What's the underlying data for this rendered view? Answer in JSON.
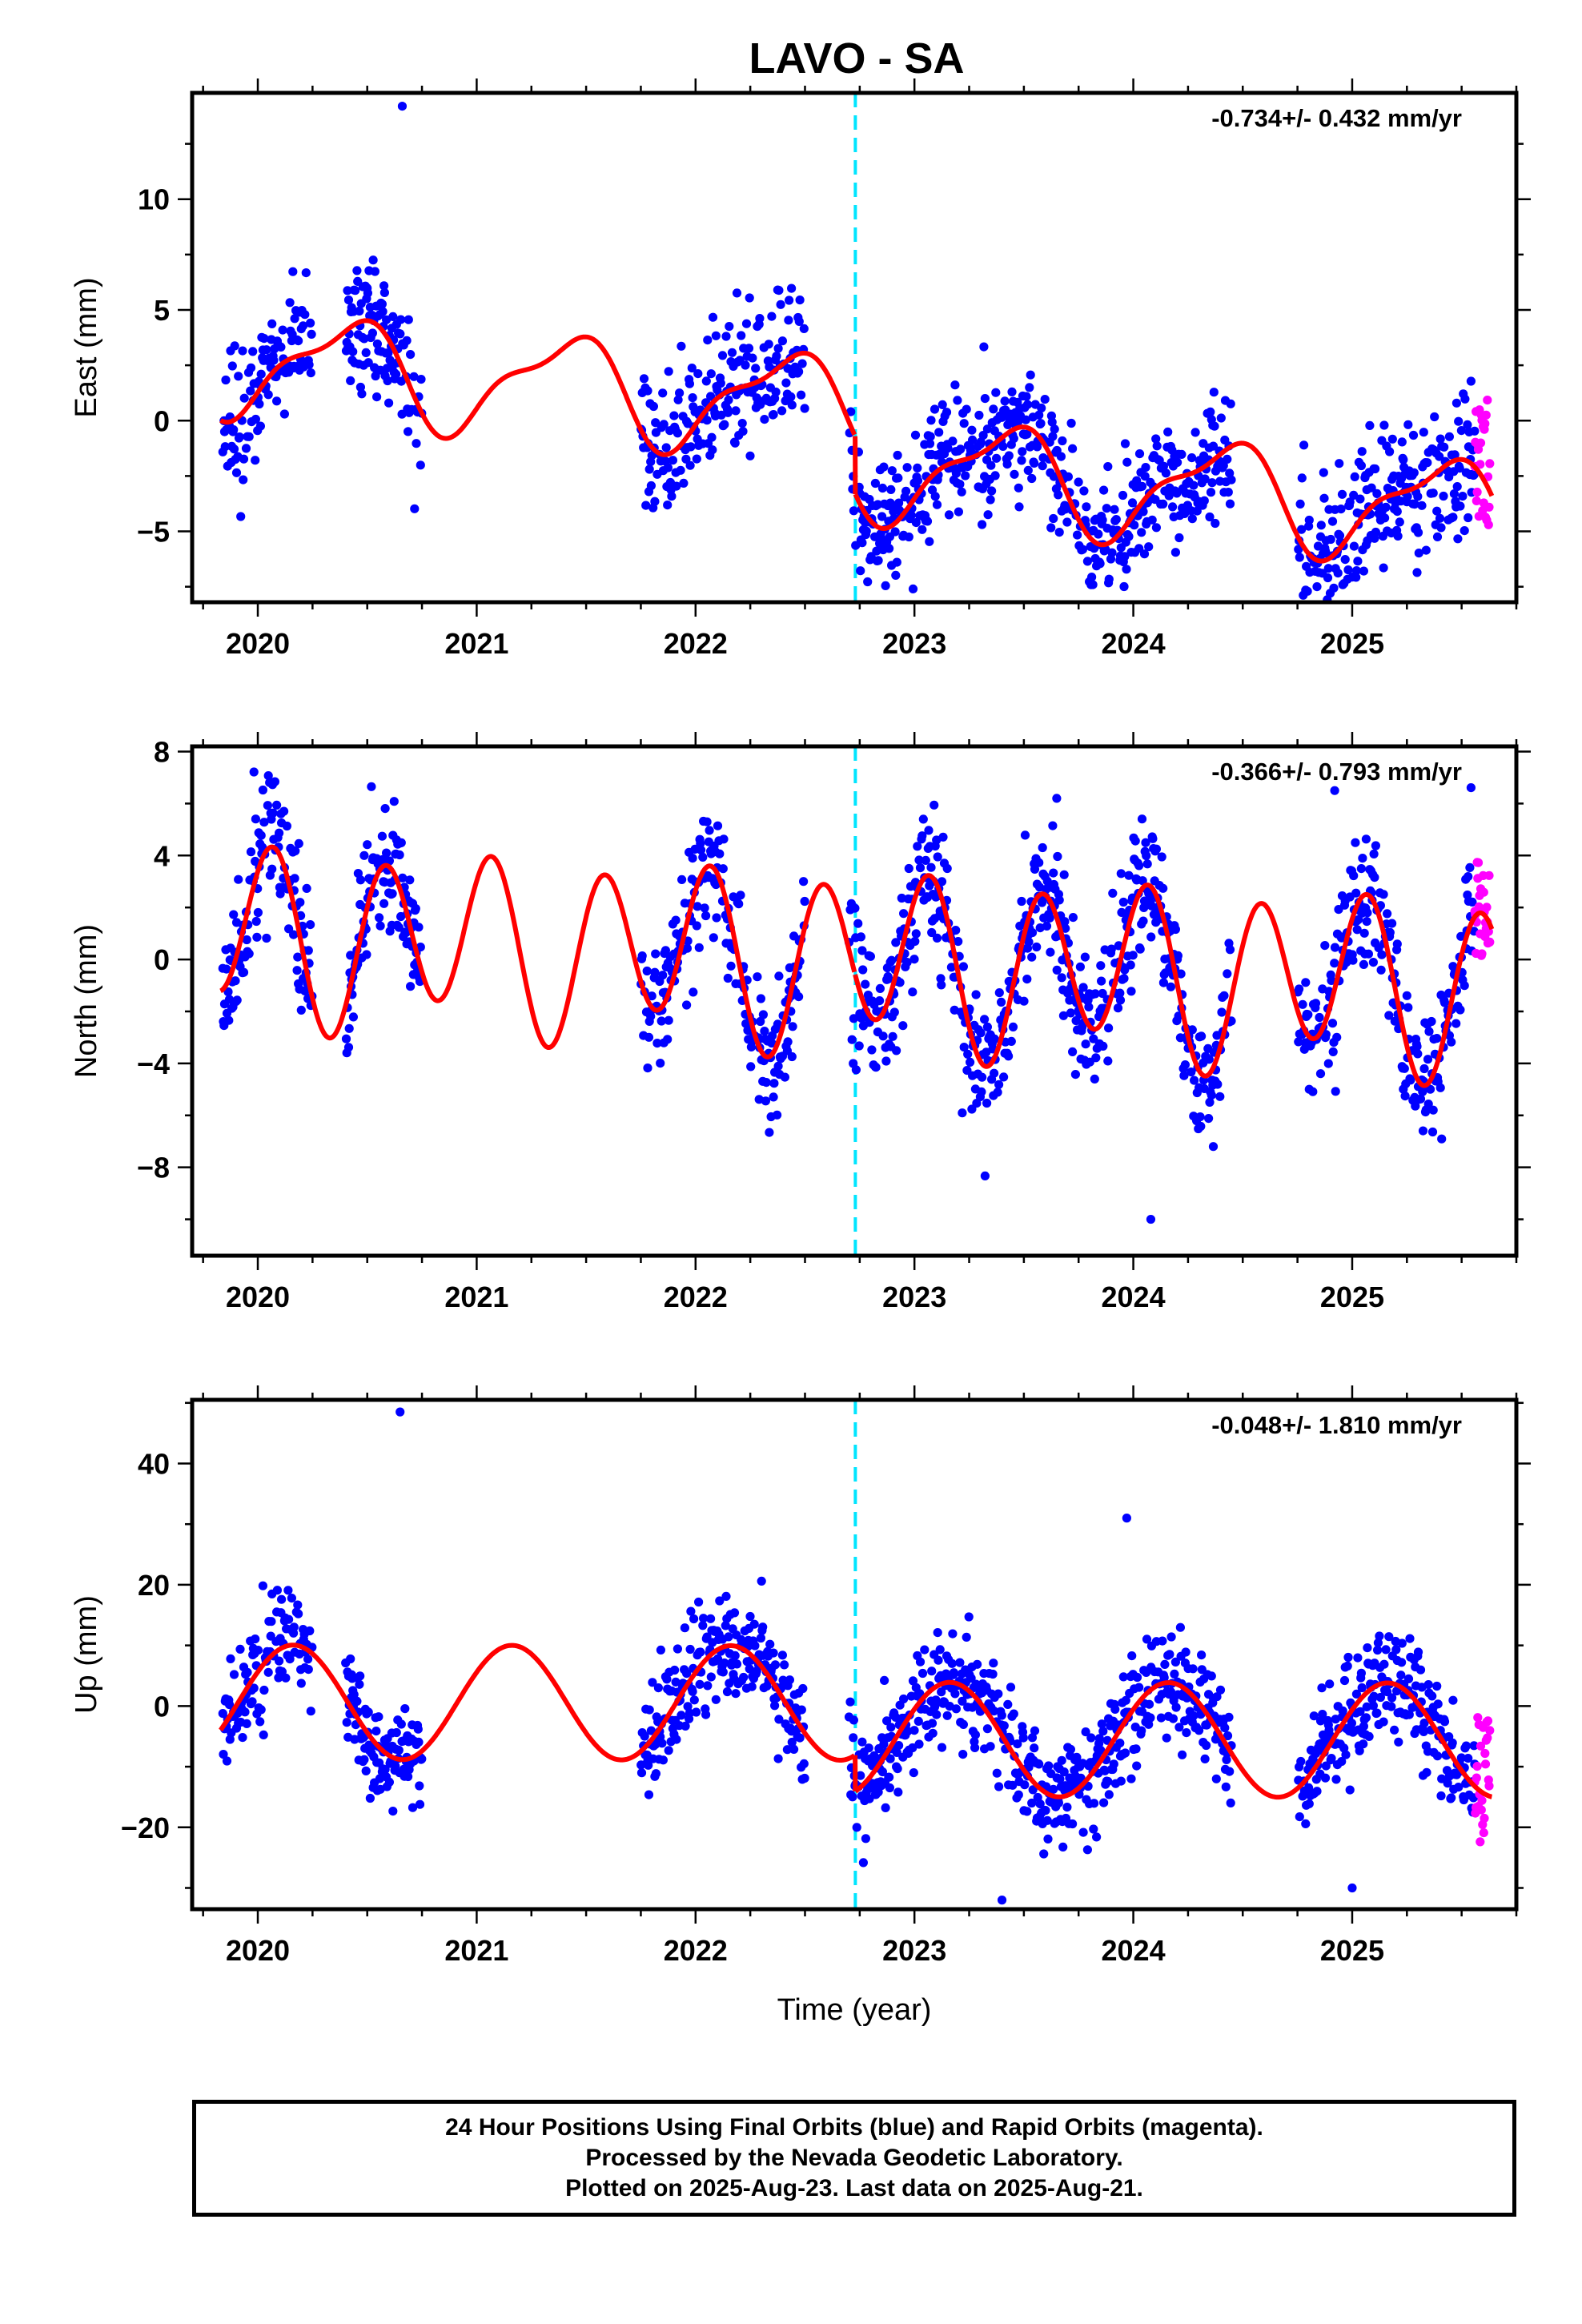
{
  "title": "LAVO - SA",
  "colors": {
    "final_orbits": "#0000ff",
    "rapid_orbits": "#ff00ff",
    "model": "#ff0000",
    "equipment_change": "#00e5ff"
  },
  "footer": {
    "line1": "24 Hour Positions Using Final Orbits (blue) and Rapid Orbits (magenta).",
    "line2": "Processed by the Nevada Geodetic Laboratory.",
    "line3": "Plotted on 2025-Aug-23. Last data on 2025-Aug-21."
  },
  "chart_data": [
    {
      "type": "scatter",
      "ylabel": "East (mm)",
      "xlabel": "",
      "rate_label": "-0.734+/- 0.432 mm/yr",
      "xlim": [
        2019.7,
        2025.75
      ],
      "ylim": [
        -8.2,
        14.8
      ],
      "xticks": [
        2020,
        2021,
        2022,
        2023,
        2024,
        2025
      ],
      "yticks": [
        -5,
        0,
        5,
        10
      ],
      "vline": 2022.73,
      "gaps": [
        [
          2020.25,
          2020.4
        ],
        [
          2020.75,
          2021.75
        ],
        [
          2022.5,
          2022.7
        ],
        [
          2024.45,
          2024.75
        ]
      ],
      "model": {
        "offset": 0.6,
        "trend": -0.734,
        "step": -2.6,
        "a1": 1.2,
        "b1": -1.8,
        "a2": 0.6,
        "b2": 0.5
      },
      "noise": 1.5,
      "outliers": [
        {
          "x": 2020.66,
          "y": 14.2
        }
      ],
      "rapid": {
        "x_start": 2025.56,
        "x_end": 2025.63,
        "y_min": -5,
        "y_max": 1.5
      }
    },
    {
      "type": "scatter",
      "ylabel": "North (mm)",
      "xlabel": "",
      "rate_label": "-0.366+/- 0.793 mm/yr",
      "xlim": [
        2019.7,
        2025.75
      ],
      "ylim": [
        -11.4,
        8.2
      ],
      "xticks": [
        2020,
        2021,
        2022,
        2023,
        2024,
        2025
      ],
      "yticks": [
        -8,
        -4,
        0,
        4,
        8
      ],
      "vline": 2022.73,
      "gaps": [
        [
          2020.25,
          2020.4
        ],
        [
          2020.75,
          2021.75
        ],
        [
          2022.5,
          2022.7
        ],
        [
          2024.45,
          2024.75
        ]
      ],
      "model": {
        "offset": 0.0,
        "trend": -0.366,
        "step": 0.0,
        "a1": -0.6,
        "b1": 0.6,
        "a2": 2.5,
        "b2": 1.8
      },
      "noise": 1.3,
      "outliers": [
        {
          "x": 2023.65,
          "y": 6.2
        },
        {
          "x": 2024.08,
          "y": -10.0
        },
        {
          "x": 2024.92,
          "y": 6.5
        }
      ],
      "rapid": {
        "x_start": 2025.56,
        "x_end": 2025.63,
        "y_min": 0,
        "y_max": 4
      }
    },
    {
      "type": "scatter",
      "ylabel": "Up (mm)",
      "xlabel": "Time (year)",
      "rate_label": "-0.048+/- 1.810 mm/yr",
      "xlim": [
        2019.7,
        2025.75
      ],
      "ylim": [
        -33.5,
        50.5
      ],
      "xticks": [
        2020,
        2021,
        2022,
        2023,
        2024,
        2025
      ],
      "yticks": [
        -20,
        0,
        20,
        40
      ],
      "vline": 2022.73,
      "gaps": [
        [
          2020.25,
          2020.4
        ],
        [
          2020.75,
          2021.75
        ],
        [
          2022.5,
          2022.7
        ],
        [
          2024.45,
          2024.75
        ]
      ],
      "model": {
        "offset": 0.5,
        "trend": -0.048,
        "step": -6.0,
        "a1": 8.0,
        "b1": 5.0,
        "a2": 0.0,
        "b2": 0.0
      },
      "noise": 4.5,
      "outliers": [
        {
          "x": 2020.65,
          "y": 48.5
        },
        {
          "x": 2023.4,
          "y": -32
        },
        {
          "x": 2023.97,
          "y": 31
        },
        {
          "x": 2025.0,
          "y": -30
        }
      ],
      "rapid": {
        "x_start": 2025.56,
        "x_end": 2025.63,
        "y_min": -23,
        "y_max": -1
      }
    }
  ]
}
